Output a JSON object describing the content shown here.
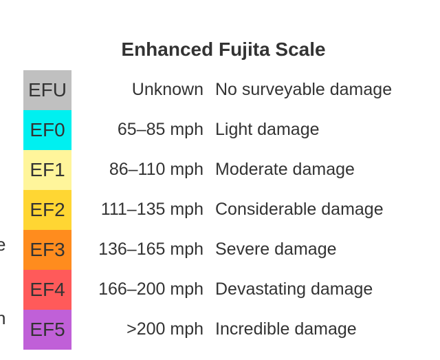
{
  "title": "Enhanced Fujita Scale",
  "left_fragments": [
    "e",
    "n"
  ],
  "rows": [
    {
      "label": "EFU",
      "speed": "Unknown",
      "description": "No surveyable damage",
      "color": "#c0c0c0"
    },
    {
      "label": "EF0",
      "speed": "65–85 mph",
      "description": "Light damage",
      "color": "#00f0f0"
    },
    {
      "label": "EF1",
      "speed": "86–110 mph",
      "description": "Moderate damage",
      "color": "#fff59b"
    },
    {
      "label": "EF2",
      "speed": "111–135 mph",
      "description": "Considerable damage",
      "color": "#ffd633"
    },
    {
      "label": "EF3",
      "speed": "136–165 mph",
      "description": "Severe damage",
      "color": "#ff8c1e"
    },
    {
      "label": "EF4",
      "speed": "166–200 mph",
      "description": "Devastating damage",
      "color": "#ff5a5a"
    },
    {
      "label": "EF5",
      "speed": ">200 mph",
      "description": "Incredible damage",
      "color": "#c060d8"
    }
  ]
}
